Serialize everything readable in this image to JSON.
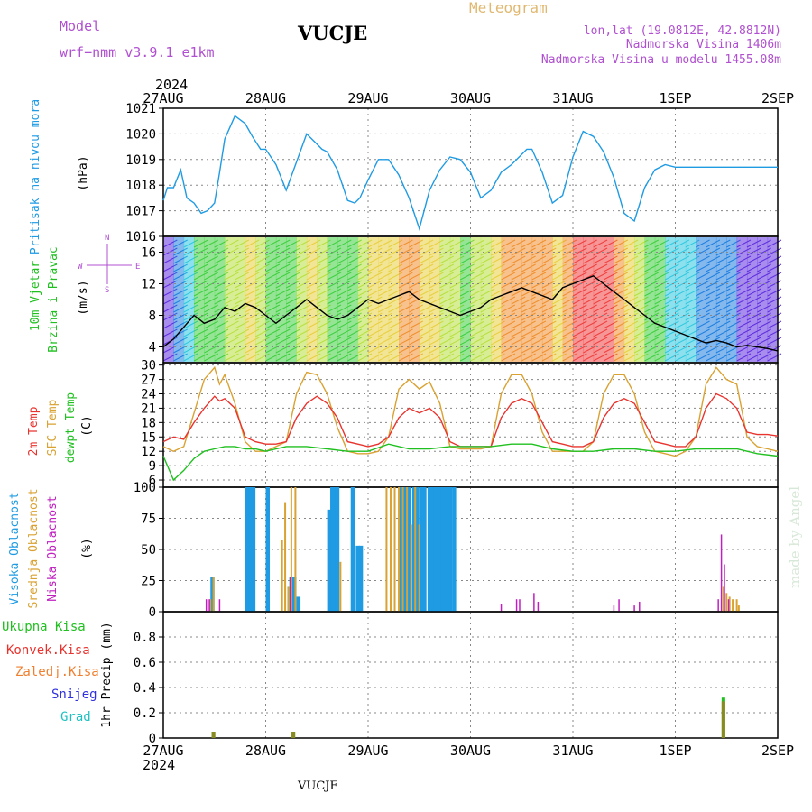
{
  "header": {
    "model_label": "Model",
    "model_value": "wrf−nmm_v3.9.1  e1km",
    "station": "VUCJE",
    "product": "Meteogram",
    "lonlat": "lon,lat (19.0812E, 42.8812N)",
    "elevation": "Nadmorska Visina 1406m",
    "model_elevation": "Nadmorska Visina u modelu 1455.08m",
    "footer_station": "VUCJE",
    "credit": "made by Angel"
  },
  "time_axis": {
    "year": "2024",
    "labels": [
      "27AUG",
      "28AUG",
      "29AUG",
      "30AUG",
      "31AUG",
      "1SEP",
      "2SEP"
    ]
  },
  "colors": {
    "pressure": "#1f9be3",
    "temp2m": "#e8342f",
    "sfc_temp": "#d9a233",
    "dewpoint": "#20c020",
    "cloud_high": "#1f9be3",
    "cloud_mid": "#d9a233",
    "cloud_low": "#c020c0",
    "precip_total": "#20c020",
    "precip_conv": "#e8342f",
    "precip_frozen": "#f08030",
    "precip_snow": "#3030e0",
    "precip_hail": "#20c0c0"
  },
  "panels": {
    "pressure": {
      "label1": "Pritisak na nivou mora",
      "unit": "(hPa)"
    },
    "wind": {
      "label1": "10m Vjetar",
      "label2": "Brzina i Pravac",
      "unit": "(m/s)",
      "compass_n": "N",
      "compass_s": "S",
      "compass_w": "W",
      "compass_e": "E"
    },
    "temp": {
      "label1": "2m Temp",
      "label2": "SFC Temp",
      "label3": "dewpt Temp",
      "unit": "(C)"
    },
    "cloud": {
      "label1": "Visoka Oblacnost",
      "label2": "Srednja Oblacnost",
      "label3": "Niska Oblacnost",
      "unit": "(%)"
    },
    "precip": {
      "label_ylabel": "1hr Precip (mm)",
      "legend": [
        "Ukupna Kisa",
        "Konvek.Kisa",
        "Zaledj.Kisa",
        "Snijeg",
        "Grad"
      ]
    }
  },
  "chart_data": [
    {
      "type": "line",
      "title": "Pritisak na nivou mora",
      "ylabel": "(hPa)",
      "ylim": [
        1016,
        1021
      ],
      "yticks": [
        1016,
        1017,
        1018,
        1019,
        1020,
        1021
      ],
      "series": [
        {
          "name": "Pritisak na nivou mora",
          "x": [
            0,
            0.04,
            0.1,
            0.17,
            0.23,
            0.3,
            0.37,
            0.43,
            0.5,
            0.55,
            0.6,
            0.7,
            0.8,
            0.87,
            0.95,
            1.0,
            1.1,
            1.2,
            1.3,
            1.4,
            1.5,
            1.55,
            1.6,
            1.7,
            1.8,
            1.87,
            1.92,
            2.0,
            2.1,
            2.2,
            2.3,
            2.4,
            2.5,
            2.6,
            2.7,
            2.8,
            2.9,
            3.0,
            3.1,
            3.2,
            3.3,
            3.4,
            3.5,
            3.55,
            3.6,
            3.7,
            3.8,
            3.9,
            4.0,
            4.1,
            4.2,
            4.3,
            4.4,
            4.5,
            4.6,
            4.7,
            4.8,
            4.9,
            5.0,
            5.1,
            5.2,
            5.3,
            5.4,
            5.5,
            5.55,
            5.6,
            5.7,
            5.8,
            5.9,
            6.0
          ],
          "y": [
            1017.4,
            1017.9,
            1017.9,
            1018.6,
            1017.5,
            1017.3,
            1016.9,
            1017.0,
            1017.3,
            1018.5,
            1019.8,
            1020.7,
            1020.4,
            1019.9,
            1019.4,
            1019.4,
            1018.8,
            1017.8,
            1018.9,
            1020.0,
            1019.6,
            1019.4,
            1019.3,
            1018.6,
            1017.4,
            1017.3,
            1017.5,
            1018.2,
            1019.0,
            1019.0,
            1018.4,
            1017.5,
            1016.3,
            1017.8,
            1018.6,
            1019.1,
            1019.0,
            1018.5,
            1017.5,
            1017.8,
            1018.5,
            1018.8,
            1019.2,
            1019.4,
            1019.4,
            1018.5,
            1017.3,
            1017.6,
            1019.1,
            1020.1,
            1019.9,
            1019.3,
            1018.3,
            1016.9,
            1016.6,
            1017.9,
            1018.6,
            1018.8,
            1018.7,
            1018.7,
            1018.7,
            1018.7,
            1018.7,
            1018.7,
            1018.7,
            1018.7,
            1018.7,
            1018.7,
            1018.7,
            1018.7
          ]
        }
      ]
    },
    {
      "type": "line",
      "title": "10m Vjetar Brzina i Pravac",
      "ylabel": "(m/s)",
      "ylim": [
        2,
        18
      ],
      "yticks": [
        4,
        8,
        12,
        16
      ],
      "series": [
        {
          "name": "10m Vjetar",
          "x": [
            0,
            0.1,
            0.2,
            0.3,
            0.4,
            0.5,
            0.6,
            0.7,
            0.8,
            0.9,
            1.0,
            1.1,
            1.2,
            1.3,
            1.4,
            1.5,
            1.6,
            1.7,
            1.8,
            1.9,
            2.0,
            2.1,
            2.2,
            2.3,
            2.4,
            2.5,
            2.6,
            2.7,
            2.8,
            2.9,
            3.0,
            3.1,
            3.2,
            3.3,
            3.4,
            3.5,
            3.6,
            3.7,
            3.8,
            3.9,
            4.0,
            4.1,
            4.2,
            4.3,
            4.4,
            4.5,
            4.6,
            4.7,
            4.8,
            4.9,
            5.0,
            5.1,
            5.2,
            5.3,
            5.4,
            5.5,
            5.6,
            5.7,
            5.8,
            5.9,
            6.0
          ],
          "y": [
            4,
            5,
            6.5,
            8,
            7,
            7.5,
            9,
            8.5,
            9.5,
            9,
            8,
            7,
            8,
            9,
            10,
            9,
            8,
            7.5,
            8,
            9,
            10,
            9.5,
            10,
            10.5,
            11,
            10,
            9.5,
            9,
            8.5,
            8,
            8.5,
            9,
            10,
            10.5,
            11,
            11.5,
            11,
            10.5,
            10,
            11.5,
            12,
            12.5,
            13,
            12,
            11,
            10,
            9,
            8,
            7,
            6.5,
            6,
            5.5,
            5,
            4.5,
            4.8,
            4.5,
            4,
            4.2,
            4,
            3.8,
            3.5
          ]
        }
      ]
    },
    {
      "type": "line",
      "title": "2m Temp / SFC Temp / dewpt Temp",
      "ylabel": "(C)",
      "ylim": [
        4.5,
        30.5
      ],
      "yticks": [
        6,
        9,
        12,
        15,
        18,
        21,
        24,
        27,
        30
      ],
      "series": [
        {
          "name": "2m Temp",
          "x": [
            0,
            0.1,
            0.2,
            0.3,
            0.4,
            0.5,
            0.55,
            0.6,
            0.7,
            0.8,
            0.9,
            1.0,
            1.1,
            1.2,
            1.3,
            1.4,
            1.5,
            1.6,
            1.7,
            1.8,
            1.9,
            2.0,
            2.1,
            2.2,
            2.3,
            2.4,
            2.5,
            2.6,
            2.7,
            2.8,
            2.9,
            3.0,
            3.1,
            3.2,
            3.3,
            3.4,
            3.5,
            3.6,
            3.7,
            3.8,
            3.9,
            4.0,
            4.1,
            4.2,
            4.3,
            4.4,
            4.5,
            4.6,
            4.7,
            4.8,
            4.9,
            5.0,
            5.1,
            5.2,
            5.3,
            5.4,
            5.5,
            5.6,
            5.7,
            5.8,
            5.9,
            6.0
          ],
          "y": [
            14,
            15,
            14.5,
            18,
            21,
            23.5,
            22.5,
            23,
            21,
            15,
            14,
            13.5,
            13.5,
            14,
            19,
            22,
            23.5,
            22,
            19,
            14,
            13.5,
            13,
            13.5,
            15,
            19,
            21,
            20,
            21,
            19,
            14,
            13,
            13,
            13,
            13,
            19,
            22,
            23,
            22,
            18,
            14,
            13.5,
            13,
            13,
            14,
            19,
            22,
            23,
            22,
            18,
            14,
            13.5,
            13,
            13,
            15,
            21,
            24,
            23,
            21,
            16,
            15.5,
            15.5,
            15.2
          ]
        },
        {
          "name": "SFC Temp",
          "x": [
            0,
            0.1,
            0.2,
            0.3,
            0.4,
            0.5,
            0.55,
            0.6,
            0.7,
            0.8,
            0.9,
            1.0,
            1.1,
            1.2,
            1.3,
            1.4,
            1.5,
            1.6,
            1.7,
            1.8,
            1.9,
            2.0,
            2.1,
            2.2,
            2.3,
            2.4,
            2.5,
            2.6,
            2.7,
            2.8,
            2.9,
            3.0,
            3.1,
            3.2,
            3.3,
            3.4,
            3.5,
            3.6,
            3.7,
            3.8,
            3.9,
            4.0,
            4.1,
            4.2,
            4.3,
            4.4,
            4.5,
            4.6,
            4.7,
            4.8,
            4.9,
            5.0,
            5.1,
            5.2,
            5.3,
            5.4,
            5.5,
            5.6,
            5.7,
            5.8,
            5.9,
            6.0
          ],
          "y": [
            13,
            12,
            13,
            20,
            27,
            29.5,
            26,
            28,
            22,
            14,
            12,
            12,
            13,
            14,
            24,
            28.5,
            28,
            24,
            17,
            12,
            11.5,
            11.5,
            12,
            15,
            25,
            27,
            25,
            26.5,
            22,
            13,
            12.5,
            12.5,
            12.5,
            13,
            24,
            28,
            28,
            24,
            16,
            12,
            12,
            12,
            12,
            14,
            24,
            28,
            28,
            24,
            16,
            12,
            11.5,
            11,
            12,
            15,
            26,
            29.5,
            27,
            26,
            15,
            13,
            12.5,
            12
          ]
        },
        {
          "name": "dewpt Temp",
          "x": [
            0,
            0.1,
            0.2,
            0.3,
            0.4,
            0.5,
            0.6,
            0.7,
            0.8,
            0.9,
            1.0,
            1.2,
            1.4,
            1.6,
            1.8,
            2.0,
            2.2,
            2.4,
            2.6,
            2.8,
            3.0,
            3.2,
            3.4,
            3.6,
            3.8,
            4.0,
            4.2,
            4.4,
            4.6,
            4.8,
            5.0,
            5.2,
            5.4,
            5.6,
            5.8,
            6.0
          ],
          "y": [
            11,
            6,
            8,
            10.5,
            12,
            12.5,
            13,
            13,
            12.5,
            12.5,
            12,
            13,
            13,
            12.5,
            12,
            12,
            13.5,
            12.5,
            12.5,
            13,
            13,
            13,
            13.5,
            13.5,
            12.5,
            12,
            12,
            12.5,
            12.5,
            12,
            12,
            12.5,
            12.5,
            12.5,
            11.5,
            11
          ]
        }
      ]
    },
    {
      "type": "bar",
      "title": "Oblacnost",
      "ylabel": "(%)",
      "ylim": [
        0,
        100
      ],
      "yticks": [
        0,
        25,
        50,
        75,
        100
      ],
      "series": [
        {
          "name": "Visoka Oblacnost",
          "x": [
            0.48,
            0.82,
            0.85,
            0.88,
            1.02,
            1.25,
            1.28,
            1.32,
            1.62,
            1.65,
            1.67,
            1.7,
            1.85,
            1.9,
            1.93,
            2.32,
            2.36,
            2.4,
            2.45,
            2.48,
            2.52,
            2.55,
            2.6,
            2.63,
            2.66,
            2.7,
            2.73,
            2.76,
            2.8,
            2.84
          ],
          "y": [
            28,
            100,
            100,
            100,
            100,
            28,
            28,
            12,
            82,
            100,
            100,
            100,
            100,
            53,
            53,
            100,
            100,
            100,
            100,
            100,
            100,
            100,
            100,
            100,
            100,
            100,
            100,
            100,
            100,
            100
          ]
        },
        {
          "name": "Srednja Oblacnost",
          "x": [
            0.46,
            0.49,
            1.16,
            1.19,
            1.22,
            1.25,
            1.29,
            1.73,
            2.18,
            2.22,
            2.26,
            2.3,
            2.34,
            2.38,
            2.42,
            2.46,
            2.5,
            5.47,
            5.5,
            5.53,
            5.56,
            5.6,
            5.62
          ],
          "y": [
            10,
            28,
            58,
            88,
            20,
            100,
            100,
            40,
            100,
            100,
            100,
            100,
            100,
            100,
            70,
            100,
            70,
            20,
            15,
            12,
            10,
            10,
            5
          ]
        },
        {
          "name": "Niska Oblacnost",
          "x": [
            0.42,
            0.45,
            0.55,
            1.24,
            3.3,
            3.45,
            3.48,
            3.62,
            3.66,
            4.4,
            4.45,
            4.6,
            4.65,
            5.42,
            5.45,
            5.48,
            5.52
          ],
          "y": [
            10,
            10,
            10,
            28,
            6,
            10,
            10,
            15,
            8,
            5,
            10,
            5,
            8,
            10,
            62,
            38,
            10
          ]
        }
      ]
    },
    {
      "type": "bar",
      "title": "1hr Precip",
      "ylabel": "1hr Precip (mm)",
      "ylim": [
        0,
        1
      ],
      "yticks": [
        0,
        0.2,
        0.4,
        0.6,
        0.8
      ],
      "series": [
        {
          "name": "Ukupna Kisa",
          "x": [
            0.49,
            1.27,
            5.47
          ],
          "y": [
            0.05,
            0.05,
            0.32
          ]
        },
        {
          "name": "Konvek.Kisa",
          "x": [
            0.49,
            1.27,
            5.47
          ],
          "y": [
            0.05,
            0.05,
            0.29
          ]
        }
      ]
    }
  ]
}
